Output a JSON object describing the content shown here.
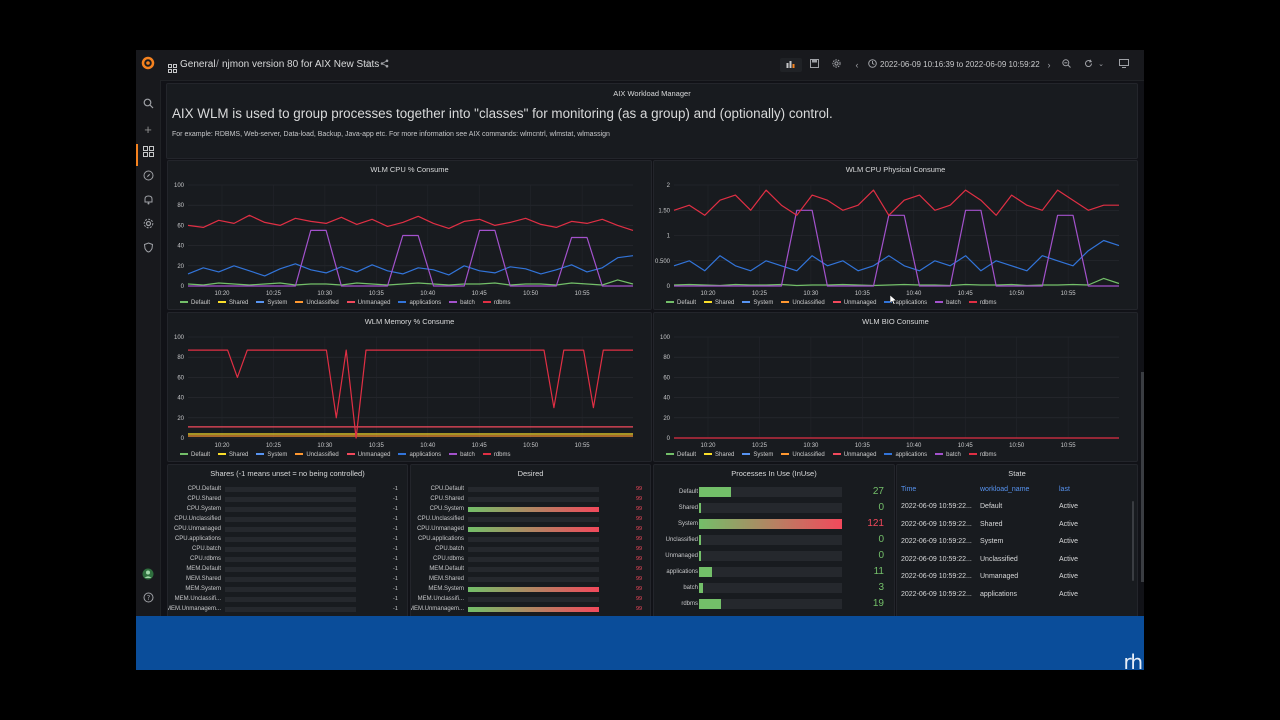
{
  "breadcrumb": {
    "folder": "General",
    "separator": "/",
    "dashboard": "njmon version 80 for AIX New Stats"
  },
  "time_range": "2022-06-09 10:16:39 to 2022-06-09 10:59:22",
  "intro": {
    "panel_title": "AIX Workload Manager",
    "heading": "AIX WLM is used to group processes together into \"classes\" for monitoring (as a group) and (optionally) control.",
    "subtext": "For example: RDBMS, Web-server, Data-load, Backup, Java-app etc. For more information see AIX commands: wlmcntrl, wlmstat, wlmassign"
  },
  "legend": {
    "items": [
      "Default",
      "Shared",
      "System",
      "Unclassified",
      "Unmanaged",
      "applications",
      "batch",
      "rdbms"
    ],
    "colors": [
      "#73bf69",
      "#fade2a",
      "#5794f2",
      "#ff9830",
      "#f2495c",
      "#3274d9",
      "#a352cc",
      "#e02f44"
    ]
  },
  "panels": {
    "cpu_pct": {
      "title": "WLM CPU % Consume"
    },
    "cpu_phys": {
      "title": "WLM CPU Physical Consume"
    },
    "mem_pct": {
      "title": "WLM Memory % Consume"
    },
    "bio": {
      "title": "WLM BIO Consume"
    },
    "shares": {
      "title": "Shares (-1 means unset = no being controlled)"
    },
    "desired": {
      "title": "Desired"
    },
    "inuse": {
      "title": "Processes In Use (InUse)"
    },
    "state": {
      "title": "State"
    }
  },
  "chart_data": [
    {
      "id": "cpu_pct",
      "type": "line",
      "title": "WLM CPU % Consume",
      "x_ticks": [
        "10:20",
        "10:25",
        "10:30",
        "10:35",
        "10:40",
        "10:45",
        "10:50",
        "10:55"
      ],
      "y_ticks": [
        "0",
        "20",
        "40",
        "60",
        "80",
        "100"
      ],
      "ylim": [
        0,
        100
      ],
      "series": [
        {
          "name": "rdbms",
          "values": [
            60,
            58,
            65,
            62,
            70,
            63,
            60,
            67,
            64,
            62,
            68,
            61,
            66,
            59,
            63,
            69,
            62,
            57,
            64,
            66,
            60,
            63,
            67,
            61,
            58,
            64,
            62,
            66,
            60,
            55
          ]
        },
        {
          "name": "batch",
          "values": [
            0,
            0,
            0,
            0,
            0,
            0,
            0,
            0,
            55,
            55,
            0,
            0,
            0,
            0,
            50,
            50,
            0,
            0,
            0,
            55,
            55,
            0,
            0,
            0,
            0,
            48,
            48,
            0,
            0,
            0
          ]
        },
        {
          "name": "applications",
          "values": [
            12,
            18,
            14,
            20,
            15,
            10,
            17,
            22,
            16,
            13,
            19,
            14,
            21,
            15,
            12,
            18,
            16,
            11,
            20,
            15,
            13,
            19,
            17,
            12,
            16,
            21,
            14,
            18,
            28,
            30
          ]
        },
        {
          "name": "Default",
          "values": [
            2,
            1,
            3,
            2,
            1,
            2,
            3,
            1,
            2,
            2,
            1,
            3,
            2,
            1,
            2,
            3,
            2,
            1,
            2,
            2,
            3,
            1,
            2,
            2,
            1,
            3,
            2,
            1,
            6,
            2
          ]
        }
      ]
    },
    {
      "id": "cpu_phys",
      "type": "line",
      "title": "WLM CPU Physical Consume",
      "x_ticks": [
        "10:20",
        "10:25",
        "10:30",
        "10:35",
        "10:40",
        "10:45",
        "10:50",
        "10:55"
      ],
      "y_ticks": [
        "0",
        "0.500",
        "1",
        "1.50",
        "2"
      ],
      "ylim": [
        0,
        2
      ],
      "series": [
        {
          "name": "rdbms",
          "values": [
            1.5,
            1.6,
            1.4,
            1.7,
            1.8,
            1.5,
            1.9,
            1.6,
            1.4,
            1.8,
            1.7,
            1.5,
            1.6,
            1.9,
            1.4,
            1.7,
            1.8,
            1.5,
            1.6,
            1.9,
            1.7,
            1.4,
            1.8,
            1.6,
            1.5,
            1.9,
            1.7,
            1.5,
            1.6,
            1.6
          ]
        },
        {
          "name": "batch",
          "values": [
            0,
            0,
            0,
            0,
            0,
            0,
            0,
            0,
            1.5,
            1.5,
            0,
            0,
            0,
            0,
            1.4,
            1.4,
            0,
            0,
            0,
            1.5,
            1.5,
            0,
            0,
            0,
            0,
            1.4,
            1.4,
            0,
            0,
            0
          ]
        },
        {
          "name": "applications",
          "values": [
            0.4,
            0.5,
            0.3,
            0.6,
            0.4,
            0.3,
            0.5,
            0.4,
            0.3,
            0.6,
            0.4,
            0.5,
            0.3,
            0.4,
            0.6,
            0.4,
            0.3,
            0.5,
            0.4,
            0.6,
            0.3,
            0.5,
            0.4,
            0.3,
            0.6,
            0.5,
            0.4,
            0.7,
            0.9,
            0.8
          ]
        },
        {
          "name": "Default",
          "values": [
            0.02,
            0.03,
            0.02,
            0.01,
            0.03,
            0.02,
            0.02,
            0.03,
            0.01,
            0.02,
            0.02,
            0.03,
            0.02,
            0.01,
            0.02,
            0.03,
            0.02,
            0.02,
            0.01,
            0.03,
            0.02,
            0.02,
            0.03,
            0.01,
            0.02,
            0.02,
            0.03,
            0.02,
            0.15,
            0.05
          ]
        }
      ]
    },
    {
      "id": "mem_pct",
      "type": "line",
      "title": "WLM Memory % Consume",
      "x_ticks": [
        "10:20",
        "10:25",
        "10:30",
        "10:35",
        "10:40",
        "10:45",
        "10:50",
        "10:55"
      ],
      "y_ticks": [
        "0",
        "20",
        "40",
        "60",
        "80",
        "100"
      ],
      "ylim": [
        0,
        100
      ],
      "series": [
        {
          "name": "rdbms",
          "values": [
            87,
            87,
            87,
            87,
            87,
            60,
            87,
            87,
            87,
            87,
            87,
            87,
            87,
            87,
            87,
            20,
            87,
            0,
            87,
            87,
            87,
            87,
            87,
            87,
            87,
            87,
            87,
            87,
            87,
            87,
            87,
            87,
            87,
            87,
            87,
            87,
            87,
            30,
            87,
            87,
            87,
            30,
            87,
            87,
            87,
            87
          ]
        },
        {
          "name": "Unmanaged",
          "values": [
            11,
            11,
            11,
            11,
            11,
            11,
            11,
            11,
            11,
            11,
            11,
            11,
            11,
            11,
            11,
            11,
            11,
            11,
            11,
            11,
            11,
            11,
            11,
            11,
            11,
            11,
            11,
            11,
            11,
            11,
            11,
            11,
            11,
            11,
            11,
            11,
            11,
            11,
            11,
            11,
            11,
            11,
            11,
            11,
            11,
            11
          ]
        },
        {
          "name": "Shared",
          "values": [
            4,
            4,
            4,
            4,
            4,
            4,
            4,
            4,
            4,
            4,
            4,
            4,
            4,
            4,
            4,
            4,
            4,
            4,
            4,
            4,
            4,
            4,
            4,
            4,
            4,
            4,
            4,
            4,
            4,
            4,
            4,
            4,
            4,
            4,
            4,
            4,
            4,
            4,
            4,
            4,
            4,
            4,
            4,
            4,
            4,
            4
          ]
        },
        {
          "name": "Unclassified",
          "values": [
            2,
            2,
            2,
            2,
            2,
            2,
            2,
            2,
            2,
            2,
            2,
            2,
            2,
            2,
            2,
            2,
            2,
            2,
            2,
            2,
            2,
            2,
            2,
            2,
            2,
            2,
            2,
            2,
            2,
            2,
            2,
            2,
            2,
            2,
            2,
            2,
            2,
            2,
            2,
            2,
            2,
            2,
            2,
            2,
            2,
            2
          ]
        }
      ]
    },
    {
      "id": "bio",
      "type": "line",
      "title": "WLM BIO Consume",
      "x_ticks": [
        "10:20",
        "10:25",
        "10:30",
        "10:35",
        "10:40",
        "10:45",
        "10:50",
        "10:55"
      ],
      "y_ticks": [
        "0",
        "20",
        "40",
        "60",
        "80",
        "100"
      ],
      "ylim": [
        0,
        100
      ],
      "series": [
        {
          "name": "rdbms",
          "values": [
            0,
            0,
            0,
            0,
            0,
            0,
            0,
            0,
            0,
            0
          ]
        }
      ]
    },
    {
      "id": "inuse",
      "type": "bar",
      "title": "Processes In Use (InUse)",
      "categories": [
        "Default",
        "Shared",
        "System",
        "Unclassified",
        "Unmanaged",
        "applications",
        "batch",
        "rdbms"
      ],
      "values": [
        27,
        0,
        121,
        0,
        0,
        11,
        3,
        19
      ],
      "max": 121
    }
  ],
  "shares": {
    "labels": [
      "CPU.Default",
      "CPU.Shared",
      "CPU.System",
      "CPU.Unclassified",
      "CPU.Unmanaged",
      "CPU.applications",
      "CPU.batch",
      "CPU.rdbms",
      "MEM.Default",
      "MEM.Shared",
      "MEM.System",
      "MEM.Unclassifi...",
      "MEM.Unmanagem..."
    ],
    "values": [
      "-1",
      "-1",
      "-1",
      "-1",
      "-1",
      "-1",
      "-1",
      "-1",
      "-1",
      "-1",
      "-1",
      "-1",
      "-1"
    ]
  },
  "desired": {
    "labels": [
      "CPU.Default",
      "CPU.Shared",
      "CPU.System",
      "CPU.Unclassified",
      "CPU.Unmanaged",
      "CPU.applications",
      "CPU.batch",
      "CPU.rdbms",
      "MEM.Default",
      "MEM.Shared",
      "MEM.System",
      "MEM.Unclassifi...",
      "MEM.Unmanagem..."
    ],
    "values": [
      "99",
      "99",
      "99",
      "99",
      "99",
      "99",
      "99",
      "99",
      "99",
      "99",
      "99",
      "99",
      "99"
    ],
    "fill": [
      0,
      0,
      1,
      0,
      1,
      0,
      0,
      0,
      0,
      0,
      1,
      0,
      1
    ]
  },
  "state": {
    "columns": [
      "Time",
      "workload_name",
      "last"
    ],
    "rows": [
      [
        "2022-06-09 10:59:22...",
        "Default",
        "Active"
      ],
      [
        "2022-06-09 10:59:22...",
        "Shared",
        "Active"
      ],
      [
        "2022-06-09 10:59:22...",
        "System",
        "Active"
      ],
      [
        "2022-06-09 10:59:22...",
        "Unclassified",
        "Active"
      ],
      [
        "2022-06-09 10:59:22...",
        "Unmanaged",
        "Active"
      ],
      [
        "2022-06-09 10:59:22...",
        "applications",
        "Active"
      ]
    ]
  },
  "watermark": "rh"
}
